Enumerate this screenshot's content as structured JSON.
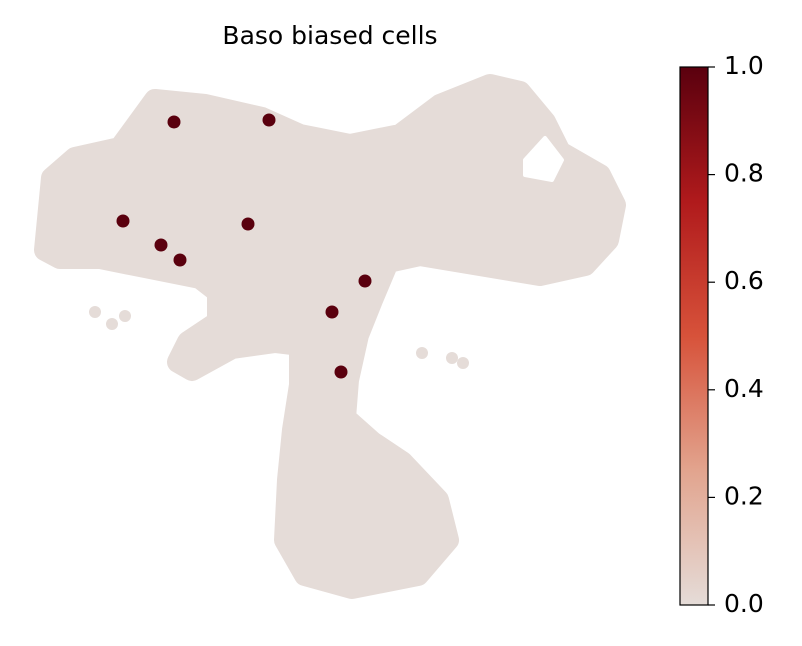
{
  "chart_data": {
    "type": "scatter",
    "title": "Baso biased cells",
    "x": [
      144,
      239,
      93,
      131,
      150,
      218,
      335,
      302,
      311
    ],
    "y": [
      478,
      480,
      379,
      355,
      340,
      376,
      319,
      288,
      228
    ],
    "values": [
      1,
      1,
      1,
      1,
      1,
      1,
      1,
      1,
      1
    ],
    "xlim": [
      0,
      600
    ],
    "ylim": [
      0,
      600
    ],
    "colormap": [
      "#e5dcd8",
      "#e2a48e",
      "#d7523a",
      "#b01a1c",
      "#5a000e"
    ],
    "clim": [
      0,
      1
    ],
    "cticks": [
      {
        "value": 0,
        "label": "0.0"
      },
      {
        "value": 0.2,
        "label": "0.2"
      },
      {
        "value": 0.4,
        "label": "0.4"
      },
      {
        "value": 0.6,
        "label": "0.6"
      },
      {
        "value": 0.8,
        "label": "0.8"
      },
      {
        "value": 1,
        "label": "1.0"
      }
    ]
  }
}
